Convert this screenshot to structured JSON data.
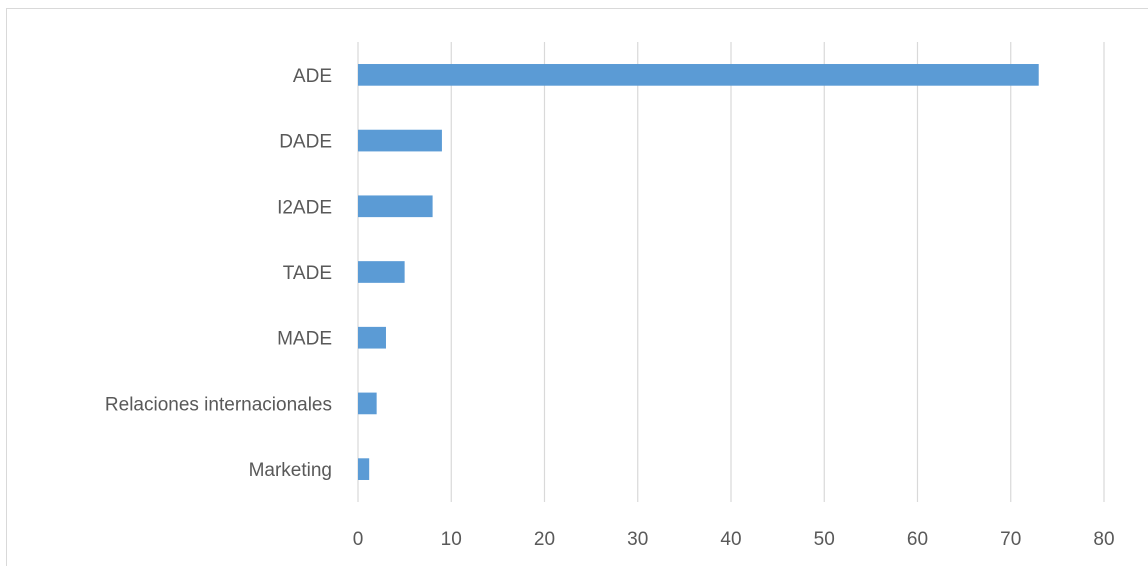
{
  "chart_data": {
    "type": "bar",
    "orientation": "horizontal",
    "categories": [
      "ADE",
      "DADE",
      "I2ADE",
      "TADE",
      "MADE",
      "Relaciones internacionales",
      "Marketing"
    ],
    "values": [
      73,
      9,
      8,
      5,
      3,
      2,
      1.2
    ],
    "xlim": [
      0,
      80
    ],
    "x_ticks": [
      0,
      10,
      20,
      30,
      40,
      50,
      60,
      70,
      80
    ],
    "title": "",
    "xlabel": "",
    "ylabel": "",
    "grid": "vertical",
    "legend": "none",
    "bar_color": "#5b9bd5"
  }
}
